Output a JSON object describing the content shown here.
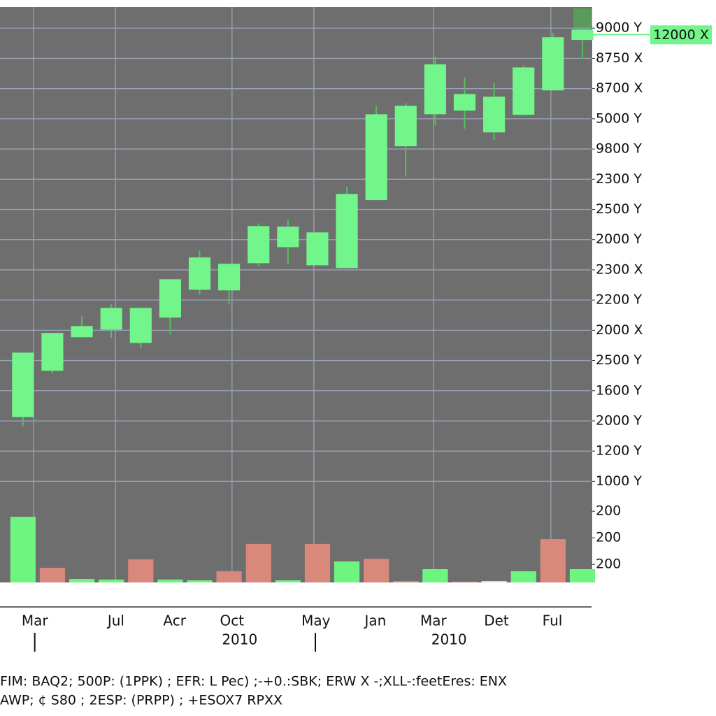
{
  "chart_data": {
    "type": "candlestick",
    "x": [
      0,
      1,
      2,
      3,
      4,
      5,
      6,
      7,
      8,
      9,
      10,
      11,
      12,
      13,
      14,
      15,
      16,
      17,
      18,
      19
    ],
    "open": [
      3.13,
      4.66,
      5.77,
      6.02,
      5.58,
      6.42,
      7.34,
      7.32,
      8.22,
      8.75,
      8.15,
      8.06,
      10.31,
      12.09,
      13.15,
      13.27,
      12.55,
      13.13,
      13.94,
      15.61
    ],
    "high": [
      5.26,
      5.91,
      6.46,
      6.86,
      6.74,
      7.69,
      8.64,
      8.2,
      9.54,
      9.68,
      9.24,
      10.75,
      13.43,
      13.52,
      15.05,
      14.38,
      14.19,
      14.77,
      15.84,
      15.95
    ],
    "low": [
      2.83,
      4.56,
      5.77,
      5.75,
      5.42,
      5.86,
      7.18,
      6.86,
      8.13,
      8.18,
      8.15,
      8.06,
      10.31,
      11.09,
      12.78,
      12.67,
      12.3,
      13.13,
      13.94,
      14.98
    ],
    "close": [
      5.26,
      5.91,
      6.14,
      6.74,
      6.74,
      7.69,
      8.41,
      8.2,
      9.45,
      9.43,
      9.24,
      10.51,
      13.15,
      13.43,
      14.8,
      13.82,
      13.73,
      14.7,
      15.7,
      15.95
    ],
    "color": "#72f58a",
    "wick_color": "#4fc45a",
    "volume": [
      2.47,
      0.55,
      0.13,
      0.11,
      0.87,
      0.11,
      0.08,
      0.42,
      1.45,
      0.08,
      1.45,
      0.79,
      0.89,
      0.05,
      0.5,
      0.03,
      0.05,
      0.42,
      1.63,
      0.5
    ],
    "volume_colors": [
      "#6ef57f",
      "#d9897c",
      "#6ef57f",
      "#6ef57f",
      "#d9897c",
      "#6ef57f",
      "#6ef57f",
      "#d9897c",
      "#d9897c",
      "#6ef57f",
      "#d9897c",
      "#6ef57f",
      "#d9897c",
      "#d9897c",
      "#6ef57f",
      "#d9897c",
      "#e6e6e6",
      "#6ef57f",
      "#d9897c",
      "#6ef57f"
    ],
    "xlim": [
      -0.78,
      19.31
    ],
    "ylim": [
      0.5,
      16.7
    ],
    "vlim": [
      0,
      3
    ],
    "yticks": [
      {
        "value": 16,
        "label": "9000 Y"
      },
      {
        "value": 15,
        "label": "8750 X"
      },
      {
        "value": 14,
        "label": "8700 X"
      },
      {
        "value": 13,
        "label": "5000 Y"
      },
      {
        "value": 12,
        "label": "9800 Y"
      },
      {
        "value": 11,
        "label": "2300 Y"
      },
      {
        "value": 10,
        "label": "2500 Y"
      },
      {
        "value": 9,
        "label": "2000 Y"
      },
      {
        "value": 8,
        "label": "2300 X"
      },
      {
        "value": 7,
        "label": "2200 Y"
      },
      {
        "value": 6,
        "label": "2000 X"
      },
      {
        "value": 5,
        "label": "2500 Y"
      },
      {
        "value": 4,
        "label": "1600 Y"
      },
      {
        "value": 3,
        "label": "2000 Y"
      },
      {
        "value": 2,
        "label": "1200 Y"
      },
      {
        "value": 1,
        "label": "1000 Y"
      }
    ],
    "vticks": [
      {
        "value": 2.68,
        "label": "200"
      },
      {
        "value": 1.68,
        "label": "200"
      },
      {
        "value": 0.68,
        "label": "200"
      }
    ],
    "xticks": [
      {
        "value": 0.4,
        "label": "Mar"
      },
      {
        "value": 3.16,
        "label": "Jul"
      },
      {
        "value": 5.15,
        "label": "Acr"
      },
      {
        "value": 7.1,
        "label": "Oct"
      },
      {
        "value": 9.95,
        "label": "May"
      },
      {
        "value": 11.97,
        "label": "Jan"
      },
      {
        "value": 13.94,
        "label": "Mar"
      },
      {
        "value": 16.08,
        "label": "Det"
      },
      {
        "value": 17.98,
        "label": "Ful"
      }
    ],
    "year_ticks": [
      {
        "value": 7.36,
        "label": "2010"
      },
      {
        "value": 14.47,
        "label": "2010"
      }
    ],
    "major_ticks": [
      0.4,
      9.93
    ],
    "xgrid": [
      0.36,
      3.14,
      7.1,
      9.88,
      13.94,
      17.93
    ],
    "grid": true,
    "last_price": {
      "value": 15.79,
      "label": "12000 X"
    },
    "footer": [
      "FIM: BAQ2; 500P: (1PPK) ; EFR: L Pec) ;-+0.:SBK; ERW X -;XLL-:feetEres: ENX",
      "AWP; ¢ S80 ; 2ESP: (PRPP) ; +ESOX7 RPXX"
    ]
  }
}
